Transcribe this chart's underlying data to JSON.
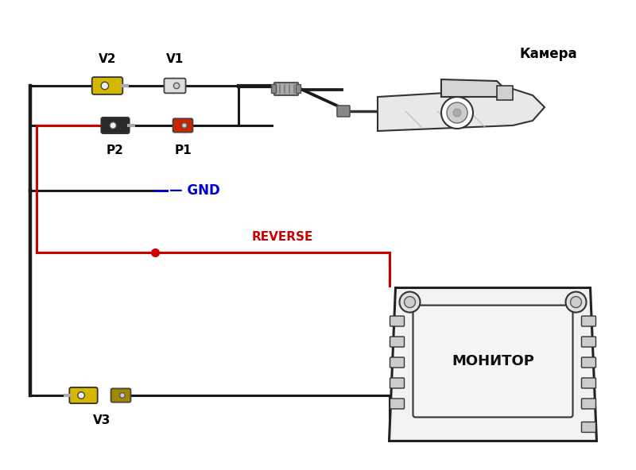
{
  "bg_color": "#ffffff",
  "line_black": "#1a1a1a",
  "line_red": "#cc0000",
  "line_blue": "#0000cc",
  "yellow_color": "#d4b800",
  "yellow_dark": "#a08800",
  "gray_light": "#cccccc",
  "gray_mid": "#999999",
  "gray_dark": "#555555",
  "red_conn": "#cc2200",
  "black_conn": "#2a2a2a",
  "text_gnd": "— GND",
  "text_reverse": "REVERSE",
  "text_camera": "Камера",
  "text_monitor": "МОНИТОР",
  "label_v1": "V1",
  "label_v2": "V2",
  "label_v3": "V3",
  "label_p1": "P1",
  "label_p2": "P2"
}
